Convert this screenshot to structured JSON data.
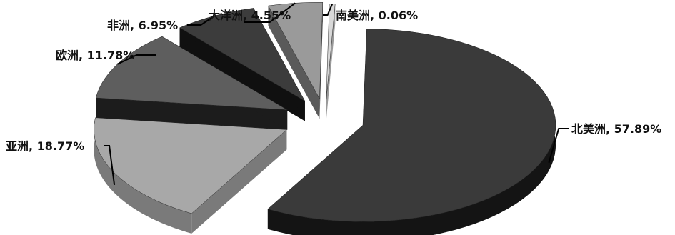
{
  "chart_data": {
    "type": "pie",
    "title": "",
    "style": "3d-exploded",
    "slices": [
      {
        "name": "北美洲",
        "value": 57.89,
        "label": "北美洲, 57.89%",
        "top_color": "#3a3a3a",
        "side_color": "#141414"
      },
      {
        "name": "亚洲",
        "value": 18.77,
        "label": "亚洲, 18.77%",
        "top_color": "#a8a8a8",
        "side_color": "#7a7a7a"
      },
      {
        "name": "欧洲",
        "value": 11.78,
        "label": "欧洲, 11.78%",
        "top_color": "#5e5e5e",
        "side_color": "#1c1c1c"
      },
      {
        "name": "非洲",
        "value": 6.95,
        "label": "非洲, 6.95%",
        "top_color": "#3c3c3c",
        "side_color": "#101010"
      },
      {
        "name": "大洋洲",
        "value": 4.55,
        "label": "大洋洲, 4.55%",
        "top_color": "#9a9a9a",
        "side_color": "#5a5a5a"
      },
      {
        "name": "南美洲",
        "value": 0.06,
        "label": "南美洲, 0.06%",
        "top_color": "#d8d8d8",
        "side_color": "#9a9a9a"
      }
    ],
    "legend": "none"
  }
}
